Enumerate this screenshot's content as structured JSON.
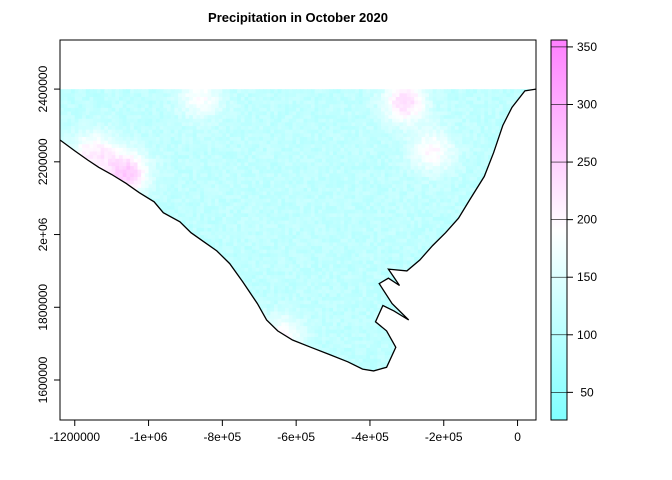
{
  "title": "Precipitation in October 2020",
  "x_axis": {
    "range": [
      -1240000,
      50000
    ],
    "ticks": [
      {
        "value": -1200000,
        "label": "-1200000"
      },
      {
        "value": -1000000,
        "label": "-1e+06"
      },
      {
        "value": -800000,
        "label": "-8e+05"
      },
      {
        "value": -600000,
        "label": "-6e+05"
      },
      {
        "value": -400000,
        "label": "-4e+05"
      },
      {
        "value": -200000,
        "label": "-2e+05"
      },
      {
        "value": 0,
        "label": "0"
      }
    ]
  },
  "y_axis": {
    "range": [
      1490000,
      2535000
    ],
    "ticks": [
      {
        "value": 1600000,
        "label": "1600000"
      },
      {
        "value": 1800000,
        "label": "1800000"
      },
      {
        "value": 2000000,
        "label": "2e+06"
      },
      {
        "value": 2200000,
        "label": "2200000"
      },
      {
        "value": 2400000,
        "label": "2400000"
      }
    ]
  },
  "legend": {
    "range": [
      26,
      356
    ],
    "ticks": [
      50,
      100,
      150,
      200,
      250,
      300,
      350
    ],
    "colors": [
      "#80ffff",
      "#ffffff",
      "#ff80ff"
    ],
    "placement": "right"
  },
  "precip": {
    "base_value": 110,
    "hotspots": [
      {
        "x": -1060000,
        "y": 2170000,
        "peak": 260
      },
      {
        "x": -1150000,
        "y": 2225000,
        "peak": 215
      },
      {
        "x": -860000,
        "y": 2380000,
        "peak": 190
      },
      {
        "x": -640000,
        "y": 1720000,
        "peak": 205
      },
      {
        "x": -305000,
        "y": 2365000,
        "peak": 235
      },
      {
        "x": -230000,
        "y": 2230000,
        "peak": 200
      }
    ]
  },
  "coastline": [
    [
      -1240000,
      2260000
    ],
    [
      -1200000,
      2230000
    ],
    [
      -1165000,
      2205000
    ],
    [
      -1135000,
      2185000
    ],
    [
      -1100000,
      2165000
    ],
    [
      -1060000,
      2140000
    ],
    [
      -1025000,
      2115000
    ],
    [
      -985000,
      2090000
    ],
    [
      -960000,
      2060000
    ],
    [
      -915000,
      2035000
    ],
    [
      -885000,
      2005000
    ],
    [
      -850000,
      1980000
    ],
    [
      -815000,
      1955000
    ],
    [
      -780000,
      1920000
    ],
    [
      -745000,
      1870000
    ],
    [
      -705000,
      1810000
    ],
    [
      -680000,
      1765000
    ],
    [
      -650000,
      1735000
    ],
    [
      -610000,
      1710000
    ],
    [
      -560000,
      1690000
    ],
    [
      -510000,
      1670000
    ],
    [
      -460000,
      1650000
    ],
    [
      -420000,
      1630000
    ],
    [
      -390000,
      1625000
    ],
    [
      -355000,
      1635000
    ],
    [
      -330000,
      1690000
    ],
    [
      -355000,
      1735000
    ],
    [
      -385000,
      1760000
    ],
    [
      -365000,
      1805000
    ],
    [
      -335000,
      1790000
    ],
    [
      -295000,
      1765000
    ],
    [
      -340000,
      1810000
    ],
    [
      -375000,
      1865000
    ],
    [
      -350000,
      1880000
    ],
    [
      -320000,
      1860000
    ],
    [
      -350000,
      1905000
    ],
    [
      -300000,
      1900000
    ],
    [
      -265000,
      1930000
    ],
    [
      -230000,
      1970000
    ],
    [
      -195000,
      2005000
    ],
    [
      -160000,
      2045000
    ],
    [
      -130000,
      2095000
    ],
    [
      -90000,
      2160000
    ],
    [
      -65000,
      2225000
    ],
    [
      -40000,
      2300000
    ],
    [
      -15000,
      2350000
    ],
    [
      20000,
      2395000
    ],
    [
      50000,
      2400000
    ],
    [
      50000,
      2400000
    ],
    [
      -1240000,
      2400000
    ]
  ]
}
